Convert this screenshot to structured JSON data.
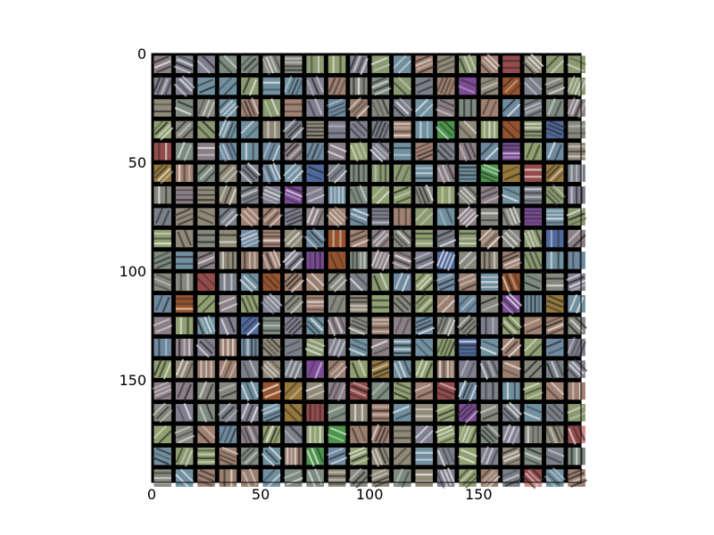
{
  "chart_data": {
    "type": "heatmap",
    "description_kind": "image-grid",
    "title": "",
    "xlabel": "",
    "ylabel": "",
    "xlim": [
      0,
      197
    ],
    "ylim": [
      197,
      0
    ],
    "xticks": [
      0,
      50,
      100,
      150
    ],
    "yticks": [
      0,
      50,
      100,
      150
    ],
    "grid": {
      "rows": 20,
      "cols": 20,
      "tile_px": 8,
      "separator_px": 2
    },
    "colors": {
      "background": "#000000",
      "tile_base": "#808080",
      "palette": [
        "#7a7f88",
        "#86887e",
        "#7d8a7f",
        "#8b7f86",
        "#7f7f8f",
        "#8f8a78",
        "#9a7f6f",
        "#6f8aa0",
        "#8a9a70",
        "#a08070",
        "#7090a0",
        "#90a070"
      ],
      "strong": [
        "#c86464",
        "#64c864",
        "#6a8cd2",
        "#c8a050",
        "#a464c8",
        "#c86e3c"
      ]
    }
  }
}
